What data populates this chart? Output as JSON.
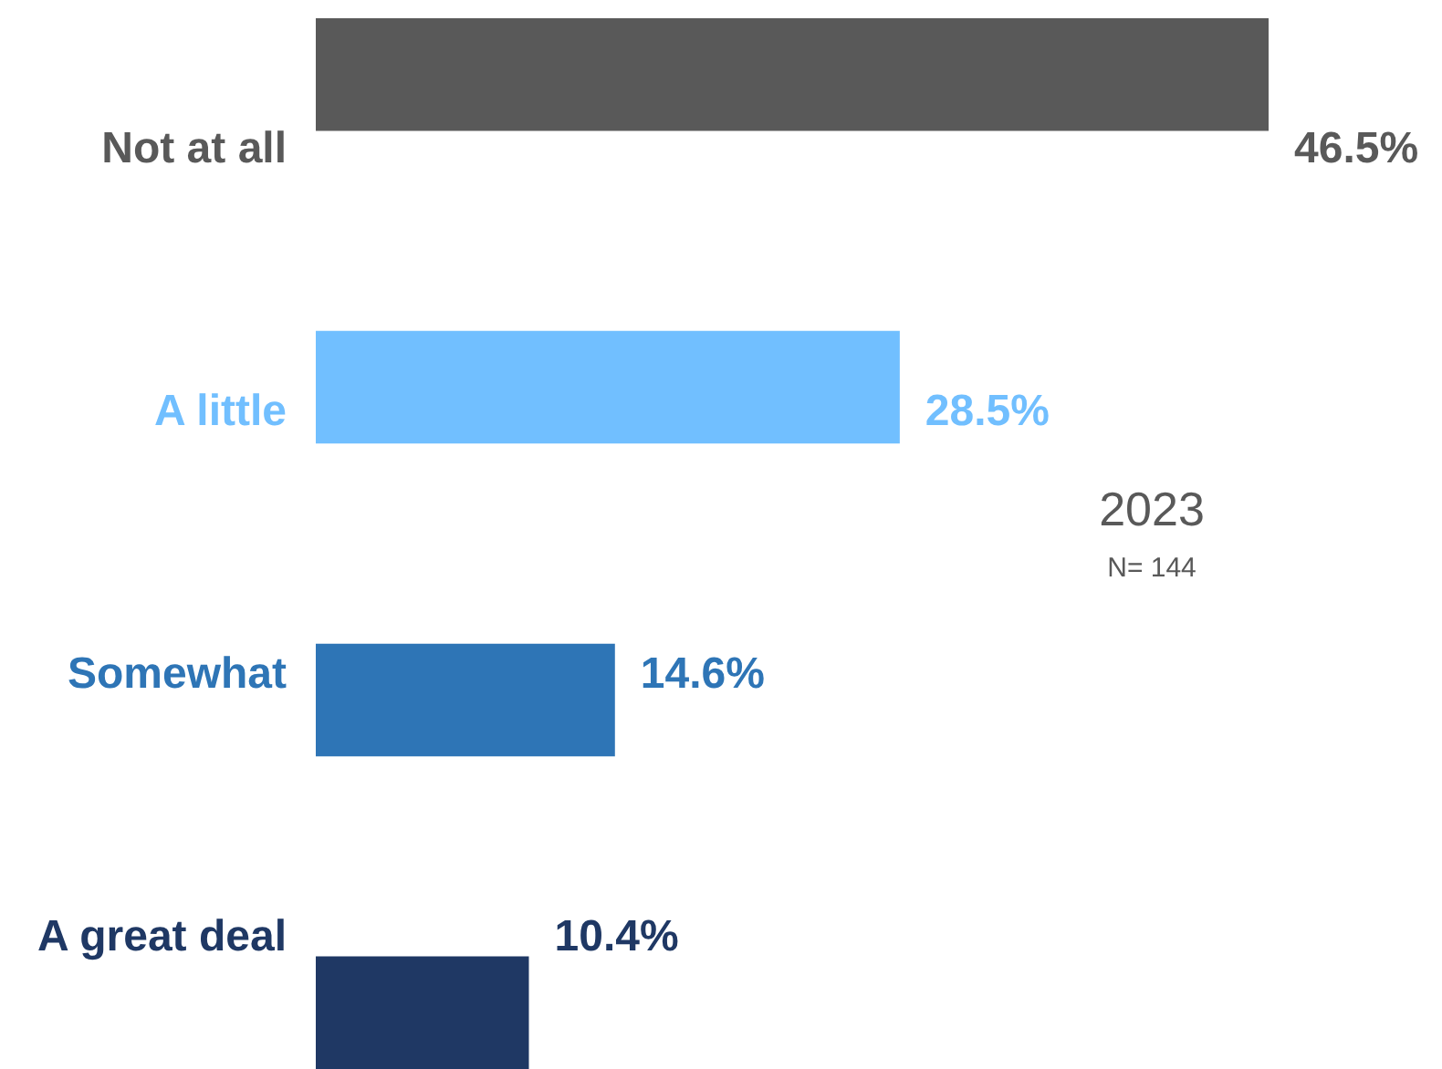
{
  "chart_data": {
    "type": "bar",
    "orientation": "horizontal",
    "categories": [
      "Not at all",
      "A little",
      "Somewhat",
      "A great deal"
    ],
    "values": [
      46.5,
      28.5,
      14.6,
      10.4
    ],
    "colors": [
      "#595959",
      "#71bfff",
      "#2e75b6",
      "#1f3864"
    ],
    "value_labels": [
      "46.5%",
      "28.5%",
      "14.6%",
      "10.4%"
    ],
    "annotations": [
      "2023",
      "N= 144"
    ]
  }
}
